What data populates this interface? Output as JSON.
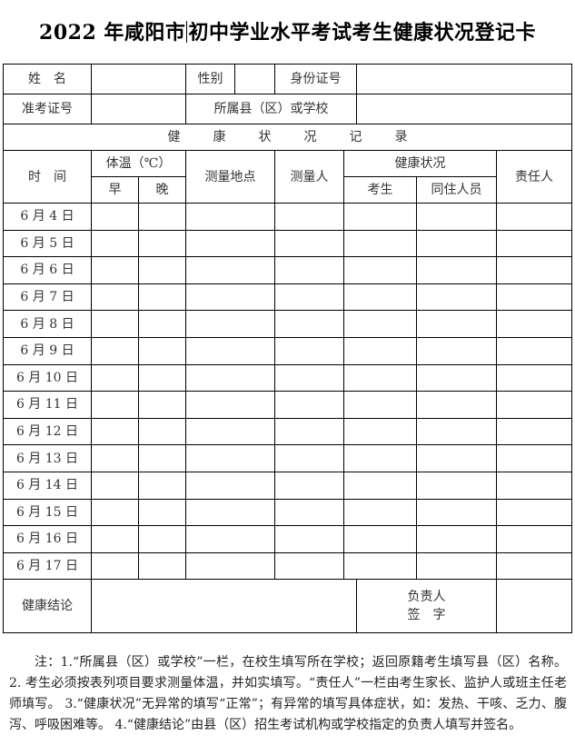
{
  "title_part1": "2022 年咸阳市",
  "title_part2": "初中学业水平考试考生健康状况登记卡",
  "info": {
    "name_label": "姓　名",
    "gender_label": "性别",
    "id_label": "身份证号",
    "exam_no_label": "准考证号",
    "school_label": "所属县（区）或学校"
  },
  "section_title": "健康状况记录",
  "headers": {
    "time": "时　间",
    "temp": "体温（℃）",
    "morning": "早",
    "evening": "晚",
    "place": "测量地点",
    "measurer": "测量人",
    "health": "健康状况",
    "student": "考生",
    "cohabitant": "同住人员",
    "responsible": "责任人"
  },
  "dates": [
    "6 月 4 日",
    "6 月 5 日",
    "6 月 6 日",
    "6 月 7 日",
    "6 月 8 日",
    "6 月 9 日",
    "6 月 10 日",
    "6 月 11 日",
    "6 月 12 日",
    "6 月 13 日",
    "6 月 14 日",
    "6 月 15 日",
    "6 月 16 日",
    "6 月 17 日"
  ],
  "footer": {
    "conclusion_label": "健康结论",
    "sign_label_1": "负责人",
    "sign_label_2": "签　字"
  },
  "notes": "注：1.“所属县（区）或学校”一栏，在校生填写所在学校；返回原籍考生填写县（区）名称。 2. 考生必须按表列项目要求测量体温，并如实填写。“责任人”一栏由考生家长、监护人或班主任老师填写。 3.“健康状况”无异常的填写“正常”；有异常的填写具体症状，如：发热、干咳、乏力、腹泻、呼吸困难等。 4.“健康结论”由县（区）招生考试机构或学校指定的负责人填写并签名。"
}
